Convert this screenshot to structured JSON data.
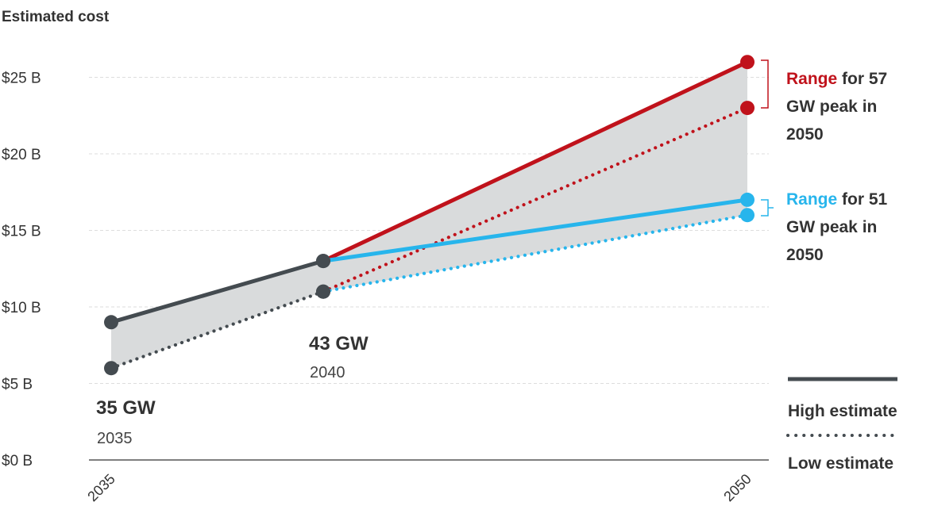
{
  "chart_data": {
    "type": "line",
    "title": "Estimated cost",
    "x_ticks": [
      "2035",
      "2050"
    ],
    "y_ticks": [
      "$0 B",
      "$5 B",
      "$10 B",
      "$15 B",
      "$20 B",
      "$25 B"
    ],
    "xlim": [
      2035,
      2050
    ],
    "ylim": [
      0,
      26
    ],
    "grid": true,
    "series": [
      {
        "style": "high",
        "color": "#444b50",
        "x": [
          2035,
          2040
        ],
        "y": [
          9,
          13
        ]
      },
      {
        "style": "low",
        "color": "#444b50",
        "x": [
          2035,
          2040
        ],
        "y": [
          6,
          11
        ]
      },
      {
        "style": "high",
        "color": "#c0121b",
        "x": [
          2040,
          2050
        ],
        "y": [
          13,
          26
        ]
      },
      {
        "style": "low",
        "color": "#c0121b",
        "x": [
          2040,
          2050
        ],
        "y": [
          11,
          23
        ]
      },
      {
        "style": "high",
        "color": "#27b5ec",
        "x": [
          2040,
          2050
        ],
        "y": [
          13,
          17
        ]
      },
      {
        "style": "low",
        "color": "#27b5ec",
        "x": [
          2040,
          2050
        ],
        "y": [
          11,
          16
        ]
      }
    ],
    "point_labels": [
      {
        "value": "35 GW",
        "year": "2035"
      },
      {
        "value": "43 GW",
        "year": "2040"
      }
    ],
    "annotations": [
      {
        "highlight": "Range",
        "lines": [
          "for 57",
          "GW peak in",
          "2050"
        ],
        "color": "#c0121b",
        "range": [
          23,
          26
        ]
      },
      {
        "highlight": "Range",
        "lines": [
          "for 51",
          "GW peak in",
          "2050"
        ],
        "color": "#27b5ec",
        "range": [
          16,
          17
        ]
      }
    ],
    "legend": {
      "high": "High estimate",
      "low": "Low estimate",
      "placement": "bottom-right"
    }
  }
}
